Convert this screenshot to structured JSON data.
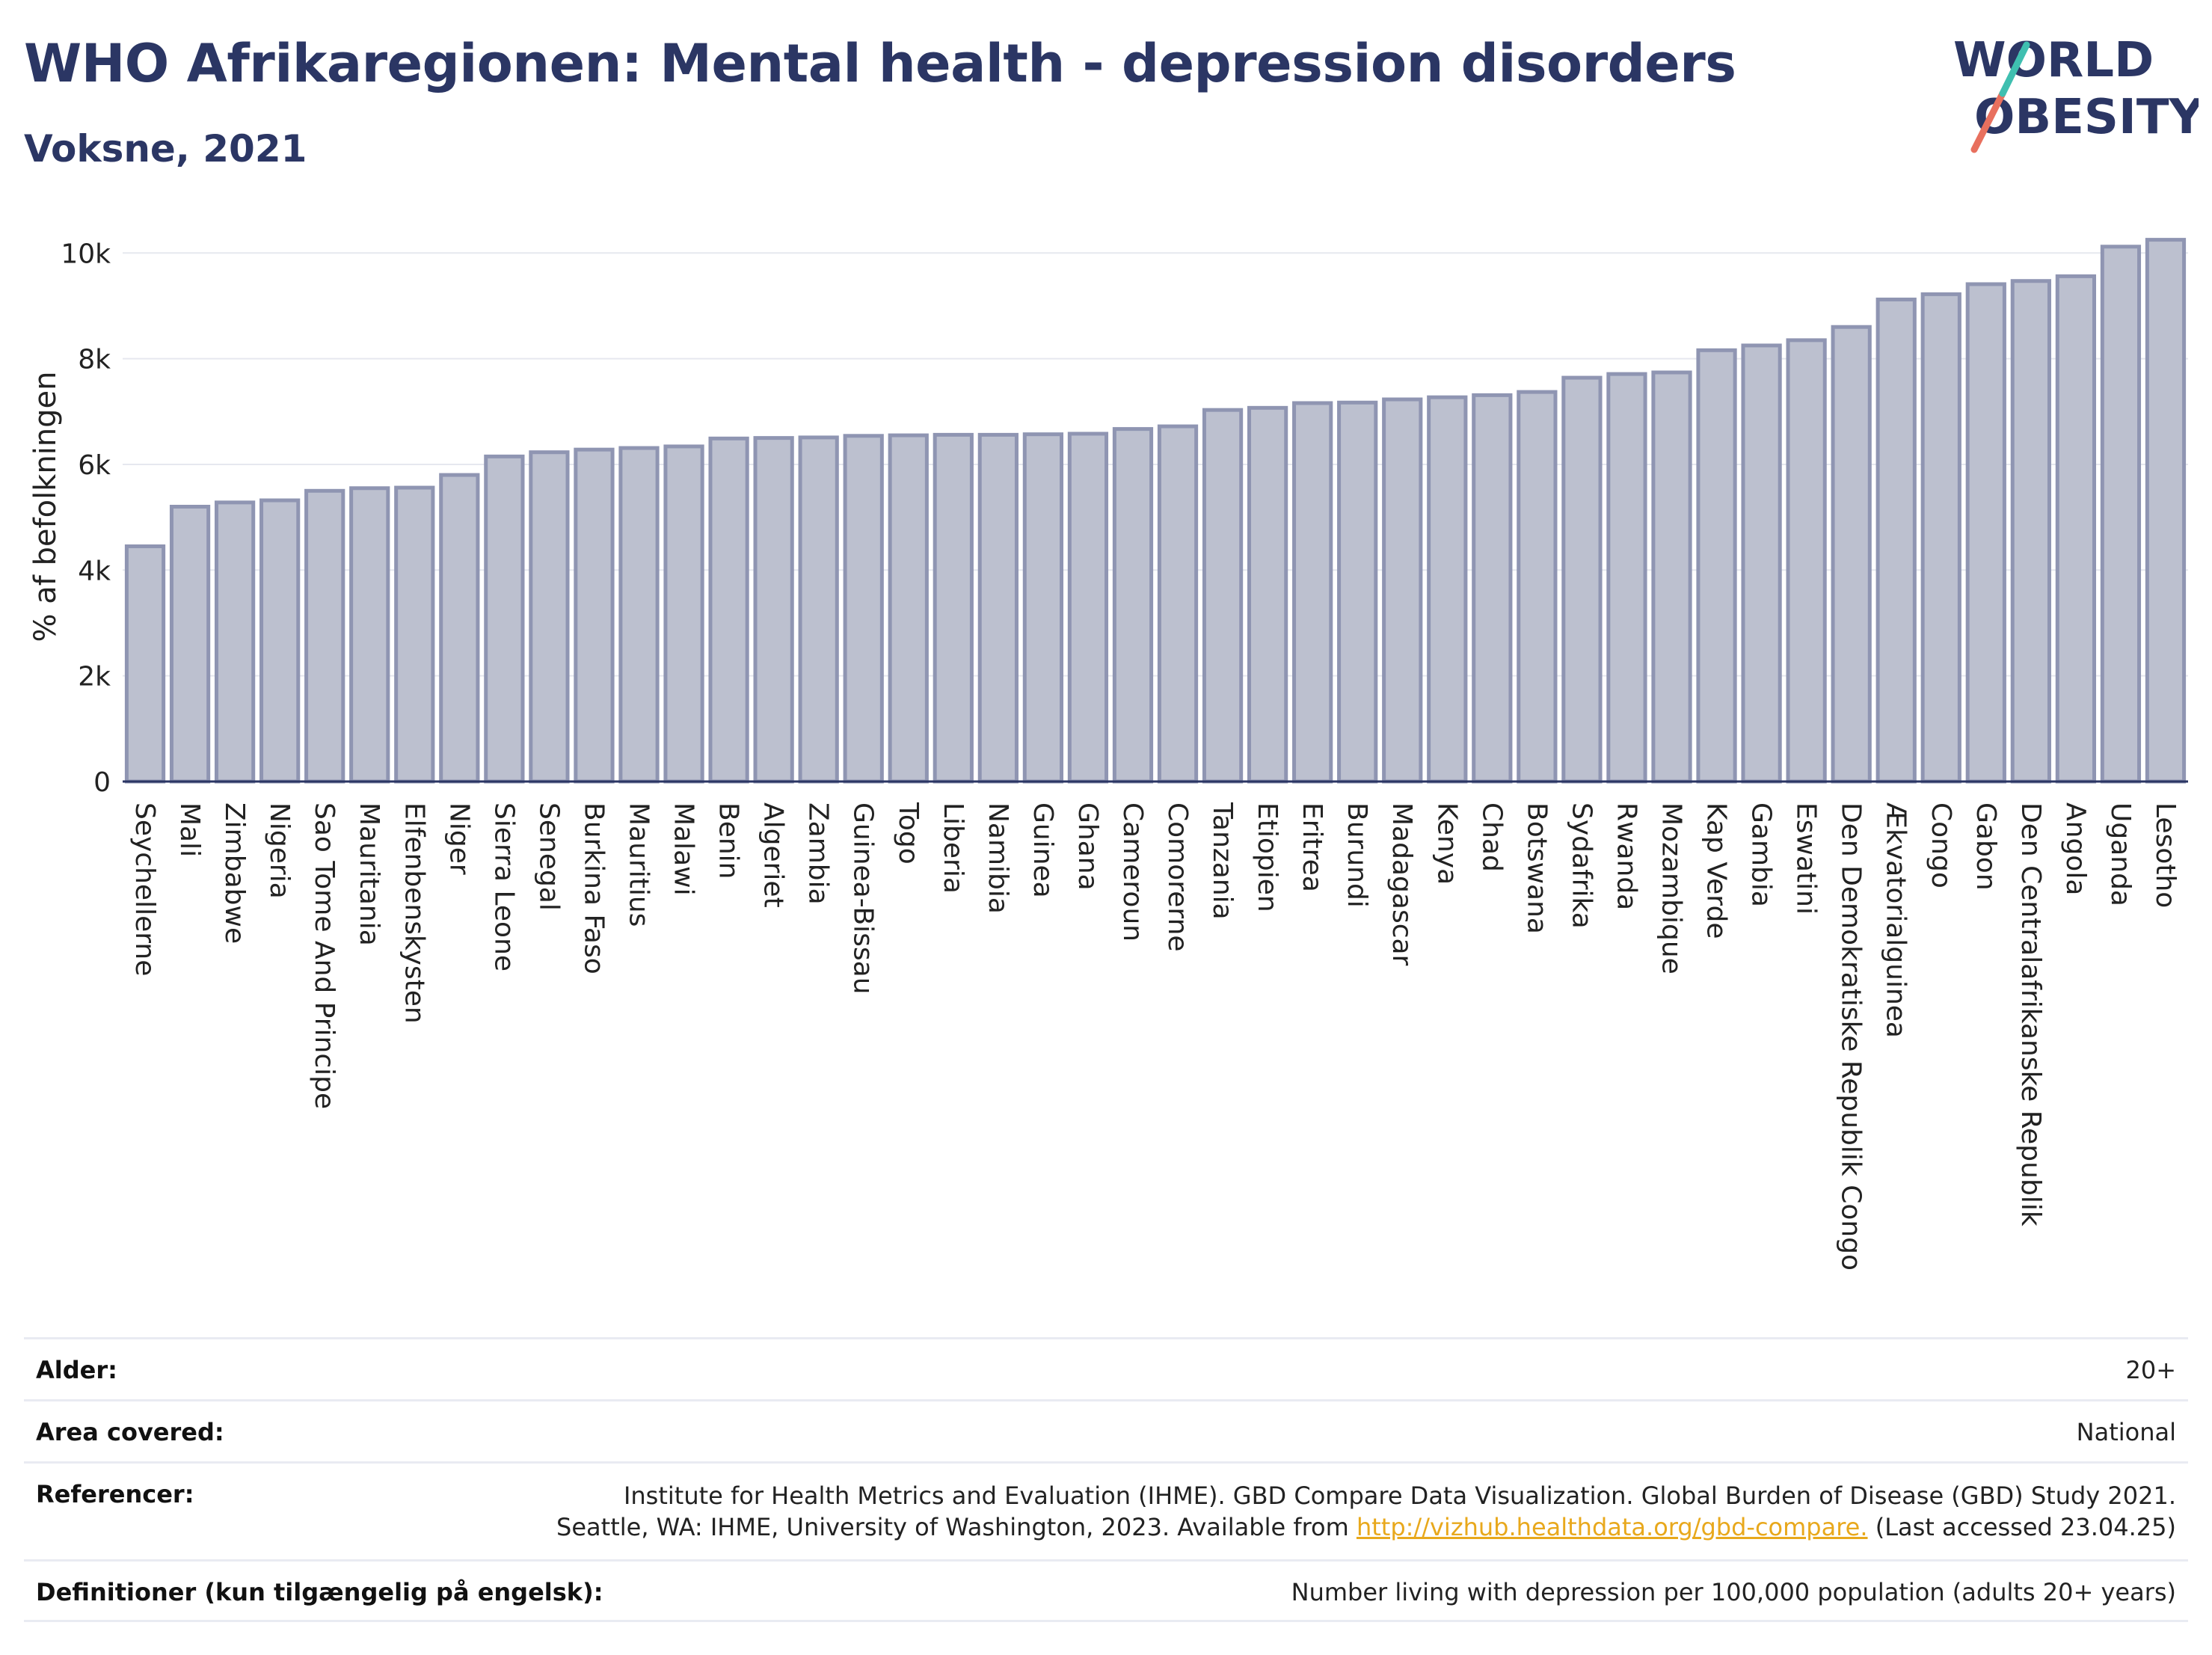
{
  "header": {
    "title": "WHO Afrikaregionen: Mental health - depression disorders",
    "subtitle": "Voksne, 2021"
  },
  "logo": {
    "line1": "WORLD",
    "line2": "OBESITY",
    "text_color": "#2b3664",
    "slash_colors": [
      "#e8705e",
      "#3fbfb0"
    ]
  },
  "colors": {
    "bar_fill": "#bcc0cf",
    "bar_stroke": "#8f95b2",
    "axis": "#2b3664",
    "grid": "#e6e8ef",
    "title": "#2b3664",
    "link": "#e8a81c"
  },
  "chart_data": {
    "type": "bar",
    "ylabel": "% af befolkningen",
    "xlabel": "",
    "ylim": [
      0,
      10400
    ],
    "yticks": [
      0,
      2000,
      4000,
      6000,
      8000,
      10000
    ],
    "ytick_labels": [
      "0",
      "2k",
      "4k",
      "6k",
      "8k",
      "10k"
    ],
    "grid": true,
    "categories": [
      "Seychellerne",
      "Mali",
      "Zimbabwe",
      "Nigeria",
      "Sao Tome And Principe",
      "Mauritania",
      "Elfenbenskysten",
      "Niger",
      "Sierra Leone",
      "Senegal",
      "Burkina Faso",
      "Mauritius",
      "Malawi",
      "Benin",
      "Algeriet",
      "Zambia",
      "Guinea-Bissau",
      "Togo",
      "Liberia",
      "Namibia",
      "Guinea",
      "Ghana",
      "Cameroun",
      "Comorerne",
      "Tanzania",
      "Etiopien",
      "Eritrea",
      "Burundi",
      "Madagascar",
      "Kenya",
      "Chad",
      "Botswana",
      "Sydafrika",
      "Rwanda",
      "Mozambique",
      "Kap Verde",
      "Gambia",
      "Eswatini",
      "Den Demokratiske Republik Congo",
      "Ækvatorialguinea",
      "Congo",
      "Gabon",
      "Den Centralafrikanske Republik",
      "Angola",
      "Uganda",
      "Lesotho"
    ],
    "values": [
      4450,
      5200,
      5280,
      5320,
      5500,
      5550,
      5560,
      5800,
      6150,
      6230,
      6280,
      6310,
      6340,
      6490,
      6500,
      6510,
      6540,
      6550,
      6560,
      6560,
      6570,
      6580,
      6670,
      6720,
      7030,
      7070,
      7160,
      7170,
      7230,
      7270,
      7310,
      7370,
      7640,
      7710,
      7740,
      8160,
      8250,
      8350,
      8600,
      9120,
      9220,
      9410,
      9470,
      9560,
      10120,
      10250
    ]
  },
  "info": {
    "rows": [
      {
        "label": "Alder:",
        "value": "20+"
      },
      {
        "label": "Area covered:",
        "value": "National"
      },
      {
        "label": "Referencer:",
        "line1": "Institute for Health Metrics and Evaluation (IHME). GBD Compare Data Visualization. Global Burden of Disease (GBD) Study 2021.",
        "line2_pre": "Seattle, WA: IHME, University of Washington, 2023. Available from ",
        "link": "http://vizhub.healthdata.org/gbd-compare.",
        "line2_post": " (Last accessed 23.04.25)"
      },
      {
        "label": "Definitioner (kun tilgængelig på engelsk):",
        "value": "Number living with depression per 100,000 population (adults 20+ years)"
      }
    ]
  }
}
